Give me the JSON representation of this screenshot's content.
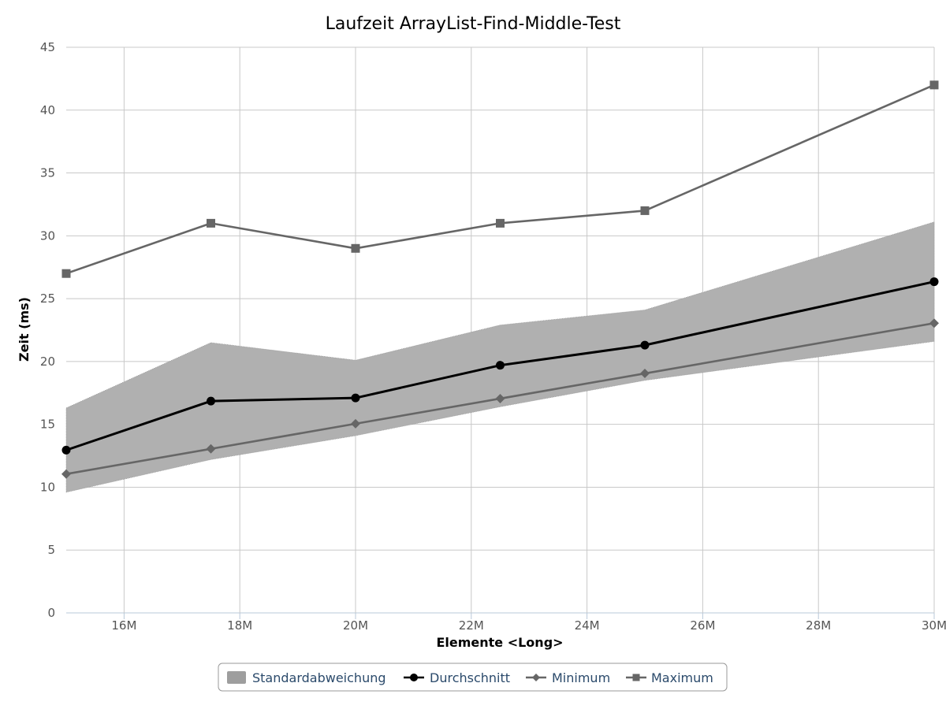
{
  "chart_data": {
    "type": "line",
    "title": "Laufzeit ArrayList-Find-Middle-Test",
    "xlabel": "Elemente <Long>",
    "ylabel": "Zeit (ms)",
    "xlim": [
      15000000,
      30000000
    ],
    "ylim": [
      0,
      45
    ],
    "x_ticks": [
      16000000,
      18000000,
      20000000,
      22000000,
      24000000,
      26000000,
      28000000,
      30000000
    ],
    "x_tick_labels": [
      "16M",
      "18M",
      "20M",
      "22M",
      "24M",
      "26M",
      "28M",
      "30M"
    ],
    "y_ticks": [
      0,
      5,
      10,
      15,
      20,
      25,
      30,
      35,
      40,
      45
    ],
    "y_tick_labels": [
      "0",
      "5",
      "10",
      "15",
      "20",
      "25",
      "30",
      "35",
      "40",
      "45"
    ],
    "grid": true,
    "legend_position": "bottom-center",
    "x": [
      15000000,
      17500000,
      20000000,
      22500000,
      25000000,
      30000000
    ],
    "band": {
      "name": "Standardabweichung",
      "lower": [
        9.6,
        12.2,
        14.1,
        16.4,
        18.5,
        21.6
      ],
      "upper": [
        16.3,
        21.5,
        20.1,
        22.9,
        24.1,
        31.1
      ],
      "color": "#b0b0b0",
      "legend_color": "#9e9e9e"
    },
    "series": [
      {
        "name": "Durchschnitt",
        "values": [
          12.95,
          16.85,
          17.1,
          19.7,
          21.3,
          26.35
        ],
        "color": "#000000",
        "marker": "circle"
      },
      {
        "name": "Minimum",
        "values": [
          11.05,
          13.05,
          15.05,
          17.05,
          19.05,
          23.05
        ],
        "color": "#666666",
        "marker": "diamond"
      },
      {
        "name": "Maximum",
        "values": [
          27,
          31,
          29,
          31,
          32,
          42
        ],
        "color": "#666666",
        "marker": "square"
      }
    ]
  }
}
